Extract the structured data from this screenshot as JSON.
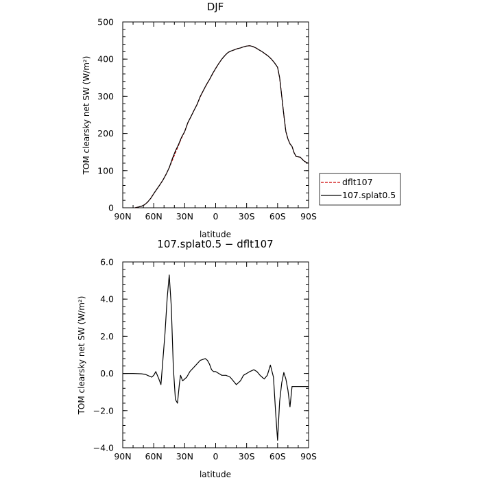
{
  "chart_data": [
    {
      "type": "line",
      "title": "DJF",
      "xlabel": "latitude",
      "ylabel": "TOM clearsky net SW (W/m²)",
      "xlim": [
        90,
        -90
      ],
      "ylim": [
        0,
        500
      ],
      "xticks": [
        90,
        60,
        30,
        0,
        -30,
        -60,
        -90
      ],
      "xtick_labels": [
        "90N",
        "60N",
        "30N",
        "0",
        "30S",
        "60S",
        "90S"
      ],
      "yticks": [
        0,
        100,
        200,
        300,
        400,
        500
      ],
      "ytick_labels": [
        "0",
        "100",
        "200",
        "300",
        "400",
        "500"
      ],
      "legend": "right",
      "series": [
        {
          "name": "dflt107",
          "color": "#cc0000",
          "style": "dashed",
          "x": [
            78,
            75,
            72,
            69,
            66,
            63,
            60,
            57,
            54,
            51,
            48,
            45,
            42,
            39,
            36,
            33,
            30,
            27,
            24,
            21,
            18,
            15,
            12,
            9,
            6,
            3,
            0,
            -3,
            -6,
            -9,
            -12,
            -15,
            -18,
            -21,
            -24,
            -27,
            -30,
            -33,
            -36,
            -39,
            -42,
            -45,
            -48,
            -51,
            -54,
            -57,
            -60,
            -62,
            -64,
            -66,
            -68,
            -70,
            -72,
            -74,
            -76,
            -78,
            -80,
            -82,
            -84,
            -86,
            -88,
            -90
          ],
          "y": [
            0,
            2,
            4,
            8,
            15,
            25,
            38,
            50,
            62,
            75,
            90,
            108,
            128,
            148,
            168,
            188,
            205,
            228,
            245,
            262,
            278,
            298,
            315,
            330,
            345,
            360,
            375,
            388,
            400,
            410,
            418,
            422,
            425,
            428,
            430,
            433,
            435,
            436,
            434,
            430,
            425,
            420,
            414,
            408,
            400,
            390,
            378,
            350,
            300,
            250,
            205,
            185,
            172,
            165,
            148,
            138,
            137,
            136,
            130,
            125,
            122,
            120
          ]
        },
        {
          "name": "107.splat0.5",
          "color": "#000000",
          "style": "solid",
          "x": [
            78,
            75,
            72,
            69,
            66,
            63,
            60,
            57,
            54,
            51,
            48,
            45,
            42,
            39,
            36,
            33,
            30,
            27,
            24,
            21,
            18,
            15,
            12,
            9,
            6,
            3,
            0,
            -3,
            -6,
            -9,
            -12,
            -15,
            -18,
            -21,
            -24,
            -27,
            -30,
            -33,
            -36,
            -39,
            -42,
            -45,
            -48,
            -51,
            -54,
            -57,
            -60,
            -62,
            -64,
            -66,
            -68,
            -70,
            -72,
            -74,
            -76,
            -78,
            -80,
            -82,
            -84,
            -86,
            -88,
            -90
          ],
          "y": [
            0,
            2,
            4,
            8,
            15,
            25,
            38,
            50,
            62,
            75,
            90,
            108,
            132,
            153,
            170,
            190,
            205,
            229,
            245,
            262,
            278,
            299,
            315,
            331,
            345,
            361,
            375,
            388,
            400,
            410,
            418,
            422,
            425,
            428,
            430,
            433,
            435,
            436,
            434,
            430,
            425,
            420,
            414,
            408,
            400,
            390,
            378,
            350,
            300,
            250,
            205,
            185,
            172,
            165,
            148,
            138,
            137,
            136,
            130,
            125,
            122,
            120
          ]
        }
      ]
    },
    {
      "type": "line",
      "title": "107.splat0.5 − dflt107",
      "xlabel": "latitude",
      "ylabel": "TOM clearsky net SW (W/m²)",
      "xlim": [
        90,
        -90
      ],
      "ylim": [
        -4,
        6
      ],
      "xticks": [
        90,
        60,
        30,
        0,
        -30,
        -60,
        -90
      ],
      "xtick_labels": [
        "90N",
        "60N",
        "30N",
        "0",
        "30S",
        "60S",
        "90S"
      ],
      "yticks": [
        -4,
        -2,
        0,
        2,
        4,
        6
      ],
      "ytick_labels": [
        "−4.0",
        "−2.0",
        "0.0",
        "2.0",
        "4.0",
        "6.0"
      ],
      "series": [
        {
          "color": "#000000",
          "x": [
            90,
            80,
            72,
            68,
            66,
            64,
            62,
            60,
            58,
            55,
            53,
            51,
            49,
            47,
            45,
            43,
            41,
            39,
            37,
            35,
            34,
            32,
            30,
            28,
            25,
            20,
            15,
            10,
            8,
            6,
            4,
            2,
            0,
            -3,
            -6,
            -10,
            -14,
            -17,
            -20,
            -24,
            -27,
            -30,
            -33,
            -37,
            -40,
            -43,
            -47,
            -50,
            -53,
            -56,
            -58,
            -60,
            -62,
            -64,
            -66,
            -68,
            -70,
            -72,
            -74,
            -76,
            -78,
            -80,
            -82,
            -84,
            -86,
            -88,
            -90
          ],
          "y": [
            0,
            0,
            -0.02,
            -0.05,
            -0.1,
            -0.15,
            -0.2,
            -0.1,
            0.1,
            -0.3,
            -0.6,
            0.8,
            2.2,
            4.0,
            5.3,
            3.6,
            0.3,
            -1.4,
            -1.6,
            -0.5,
            -0.1,
            -0.4,
            -0.3,
            -0.2,
            0.1,
            0.4,
            0.7,
            0.8,
            0.7,
            0.5,
            0.2,
            0.1,
            0.1,
            0.0,
            -0.1,
            -0.1,
            -0.2,
            -0.4,
            -0.6,
            -0.4,
            -0.1,
            0.0,
            0.1,
            0.2,
            0.1,
            -0.1,
            -0.3,
            -0.1,
            0.45,
            -0.2,
            -2.0,
            -3.6,
            -1.5,
            -0.5,
            0.05,
            -0.3,
            -0.9,
            -1.8,
            -0.7,
            -0.7,
            -0.7,
            -0.7,
            -0.7,
            -0.7,
            -0.7,
            -0.7,
            -0.7
          ]
        }
      ]
    }
  ]
}
